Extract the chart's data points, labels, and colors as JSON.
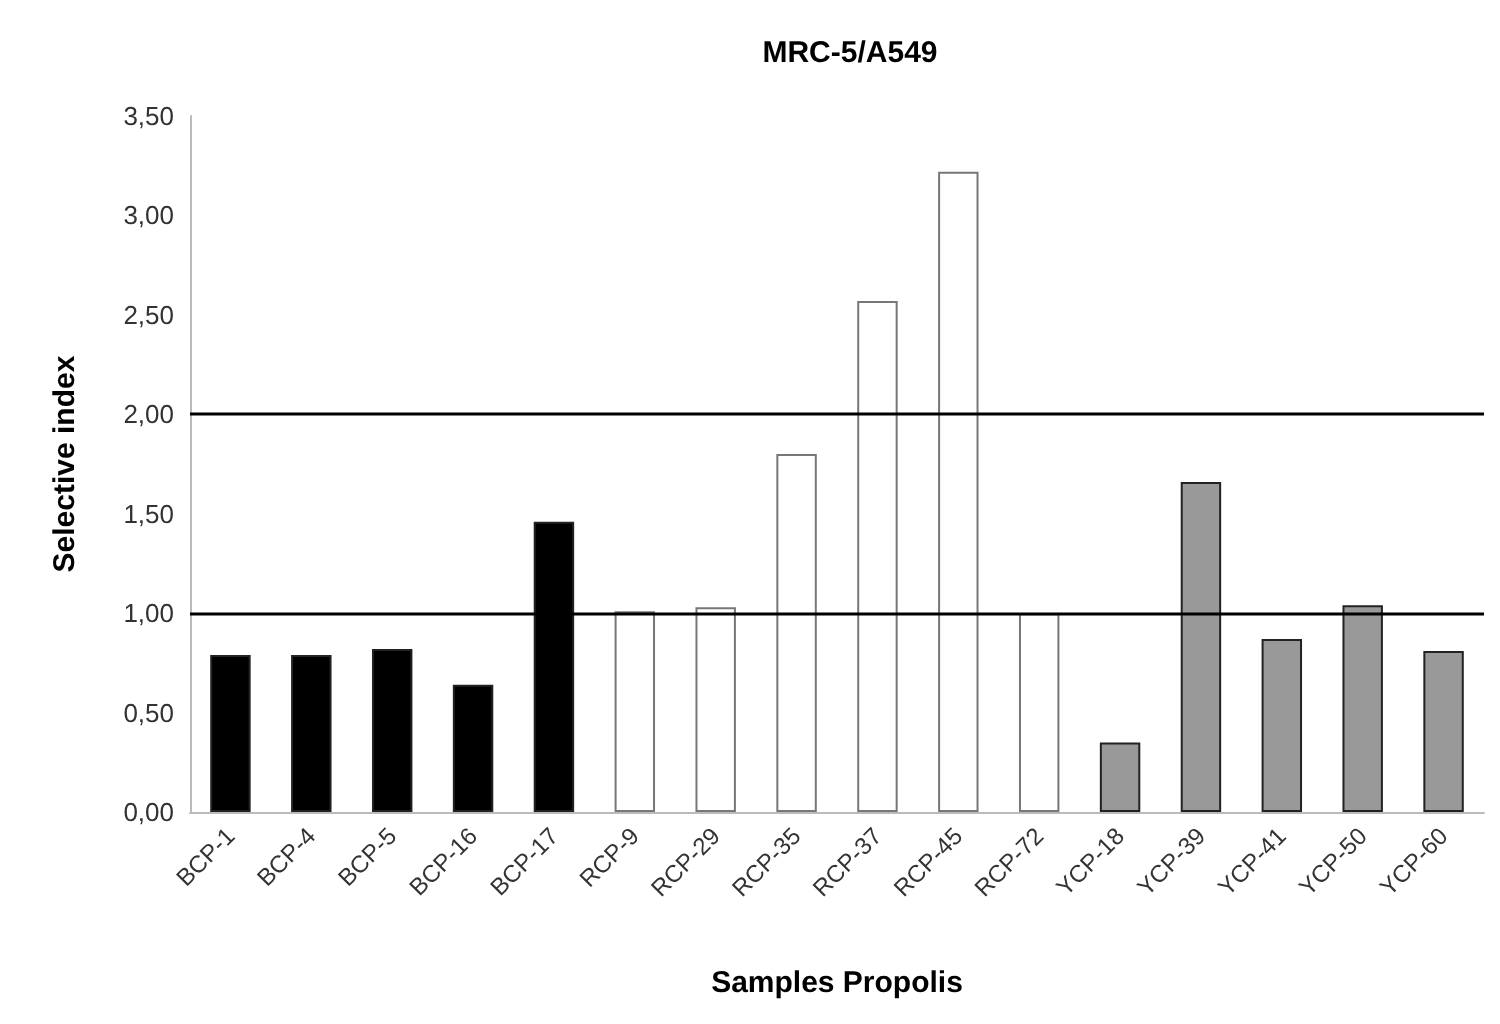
{
  "chart_data": {
    "type": "bar",
    "title": "MRC-5/A549",
    "xlabel": "Samples Propolis",
    "ylabel": "Selective index",
    "categories": [
      "BCP-1",
      "BCP-4",
      "BCP-5",
      "BCP-16",
      "BCP-17",
      "RCP-9",
      "RCP-29",
      "RCP-35",
      "RCP-37",
      "RCP-45",
      "RCP-72",
      "YCP-18",
      "YCP-39",
      "YCP-41",
      "YCP-50",
      "YCP-60"
    ],
    "values": [
      0.79,
      0.79,
      0.82,
      0.64,
      1.46,
      1.01,
      1.03,
      1.8,
      2.57,
      3.22,
      1.0,
      0.35,
      1.66,
      0.87,
      1.04,
      0.81
    ],
    "colors": [
      "#000000",
      "#000000",
      "#000000",
      "#000000",
      "#000000",
      "#ffffff",
      "#ffffff",
      "#ffffff",
      "#ffffff",
      "#ffffff",
      "#ffffff",
      "#999999",
      "#999999",
      "#999999",
      "#999999",
      "#999999"
    ],
    "ylim": [
      0,
      3.5
    ],
    "yticks": [
      {
        "value": 0,
        "label": "0,00"
      },
      {
        "value": 0.5,
        "label": "0,50"
      },
      {
        "value": 1,
        "label": "1,00"
      },
      {
        "value": 1.5,
        "label": "1,50"
      },
      {
        "value": 2,
        "label": "2,00"
      },
      {
        "value": 2.5,
        "label": "2,50"
      },
      {
        "value": 3,
        "label": "3,00"
      },
      {
        "value": 3.5,
        "label": "3,50"
      }
    ],
    "ref_lines": [
      {
        "axis": "y",
        "value": 1,
        "color": "#000000"
      },
      {
        "axis": "y",
        "value": 2,
        "color": "#000000"
      }
    ],
    "grid": false
  }
}
